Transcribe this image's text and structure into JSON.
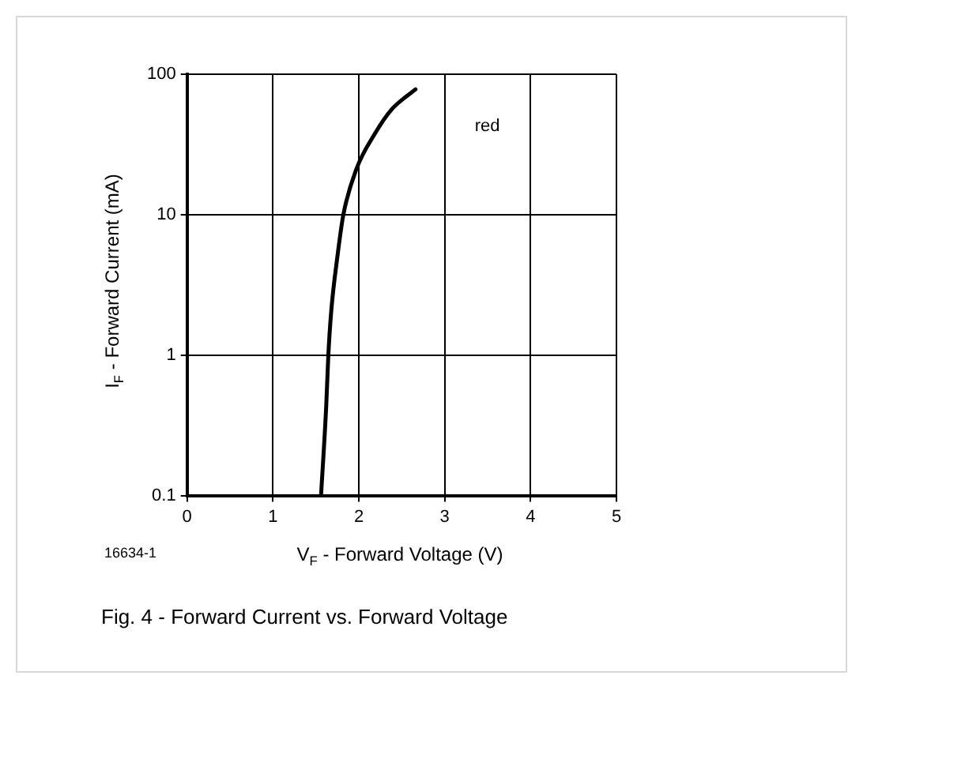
{
  "chart_data": {
    "type": "line",
    "title": "Fig. 4 - Forward Current vs. Forward Voltage",
    "xlabel": "V$_{F}$ - Forward Voltage (V)",
    "ylabel": "I$_{F}$ - Forward Current (mA)",
    "annotations": [
      "16634-1"
    ],
    "series": [
      {
        "name": "red",
        "color": "#000000",
        "x": [
          1.56,
          1.62,
          1.645,
          1.68,
          1.75,
          1.82,
          1.97,
          2.19,
          2.38,
          2.66
        ],
        "values": [
          0.1,
          0.43,
          1,
          2.1,
          5,
          10,
          21,
          38,
          56,
          78
        ]
      }
    ],
    "xlim": [
      0,
      5
    ],
    "xticks": [
      0,
      1,
      2,
      3,
      4,
      5
    ],
    "ylim": [
      0.1,
      100
    ],
    "yticks": [
      0.1,
      1,
      10,
      100
    ],
    "log": true,
    "grid": true,
    "legend": false,
    "marker": "none",
    "line_style": "solid"
  }
}
